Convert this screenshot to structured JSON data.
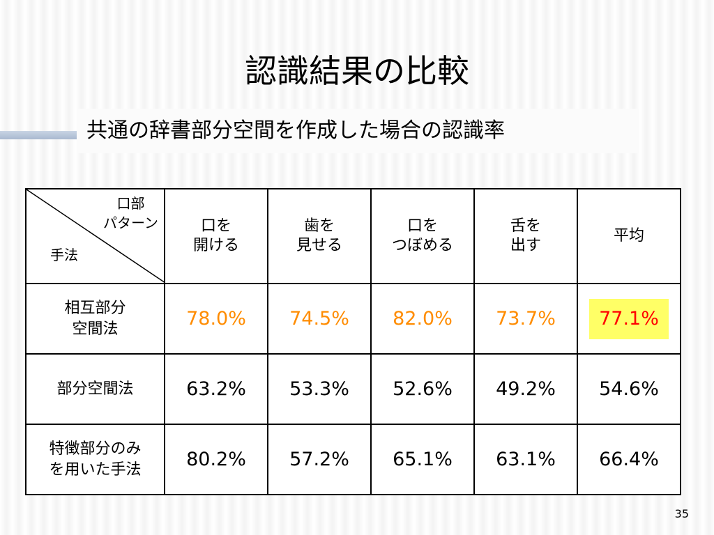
{
  "slide": {
    "title": "認識結果の比較",
    "subtitle": "共通の辞書部分空間を作成した場合の認識率",
    "page_number": "35"
  },
  "table": {
    "corner": {
      "top_line1": "口部",
      "top_line2": "パターン",
      "bottom": "手法"
    },
    "columns": [
      {
        "line1": "口を",
        "line2": "開ける"
      },
      {
        "line1": "歯を",
        "line2": "見せる"
      },
      {
        "line1": "口を",
        "line2": "つぼめる"
      },
      {
        "line1": "舌を",
        "line2": "出す"
      },
      {
        "line1": "平均",
        "line2": ""
      }
    ],
    "rows": [
      {
        "line1": "相互部分",
        "line2": "空間法",
        "values": [
          "78.0%",
          "74.5%",
          "82.0%",
          "73.7%",
          "77.1%"
        ]
      },
      {
        "line1": "部分空間法",
        "line2": "",
        "values": [
          "63.2%",
          "53.3%",
          "52.6%",
          "49.2%",
          "54.6%"
        ]
      },
      {
        "line1": "特徴部分のみ",
        "line2": "を用いた手法",
        "values": [
          "80.2%",
          "57.2%",
          "65.1%",
          "63.1%",
          "66.4%"
        ]
      }
    ]
  },
  "colors": {
    "best_method_values": "#ff8c00",
    "best_average_text": "#ff0000",
    "best_average_highlight": "#ffff66"
  }
}
